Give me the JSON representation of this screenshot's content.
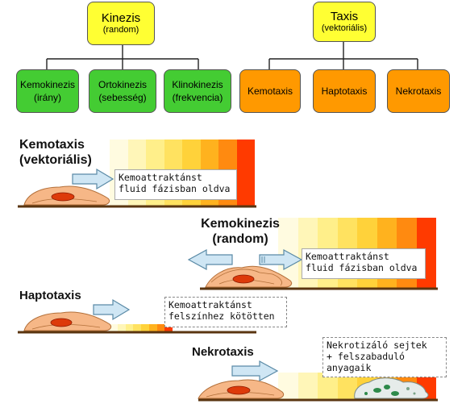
{
  "tree": {
    "kinezis": {
      "title": "Kinezis",
      "sub": "(random)"
    },
    "taxis": {
      "title": "Taxis",
      "sub": "(vektoriális)"
    },
    "kinezis_children": [
      {
        "title": "Kemokinezis",
        "sub": "(irány)"
      },
      {
        "title": "Ortokinezis",
        "sub": "(sebesség)"
      },
      {
        "title": "Klinokinezis",
        "sub": "(frekvencia)"
      }
    ],
    "taxis_children": [
      {
        "title": "Kemotaxis"
      },
      {
        "title": "Haptotaxis"
      },
      {
        "title": "Nekrotaxis"
      }
    ]
  },
  "panels": {
    "kemotaxis": {
      "label_line1": "Kemotaxis",
      "label_line2": "(vektoriális)",
      "note": [
        "Kemoattraktánst",
        "fluid fázisban oldva"
      ]
    },
    "kemokinezis": {
      "label_line1": "Kemokinezis",
      "label_line2": "(random)",
      "note": [
        "Kemoattraktánst",
        "fluid fázisban oldva"
      ]
    },
    "haptotaxis": {
      "label": "Haptotaxis",
      "note": [
        "Kemoattraktánst",
        "felszínhez kötötten"
      ]
    },
    "nekrotaxis": {
      "label": "Nekrotaxis",
      "note": [
        "Nekrotizáló sejtek",
        "+ felszabaduló",
        "anyagaik"
      ]
    }
  },
  "colors": {
    "gradient": [
      "#fffbe0",
      "#fff6b8",
      "#ffef8a",
      "#ffe260",
      "#ffd23a",
      "#ffb21e",
      "#ff8a10",
      "#ff3a00"
    ],
    "cell_body": "#f6b787",
    "nucleus": "#dd3a0a",
    "arrow_fill": "#cfe6f4",
    "arrow_stroke": "#5a8aa6",
    "ground": "#5a3510"
  }
}
